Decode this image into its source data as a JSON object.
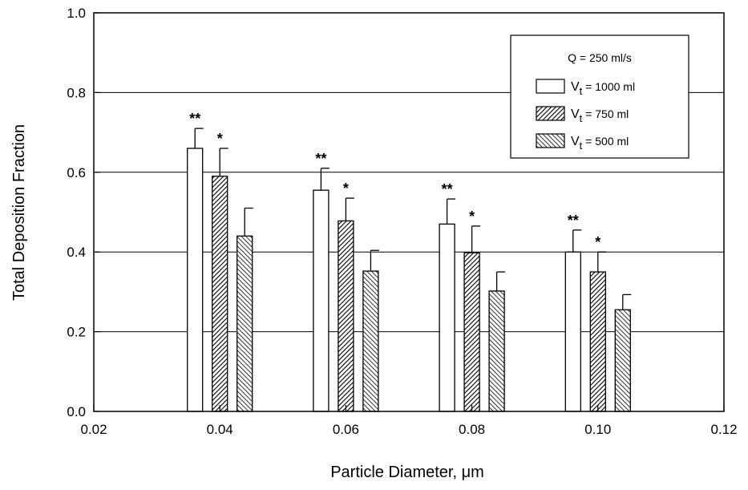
{
  "chart_data": {
    "type": "bar",
    "title": "",
    "xlabel": "Particle Diameter, μm",
    "ylabel": "Total Deposition Fraction",
    "xlim": [
      0.02,
      0.12
    ],
    "ylim": [
      0.0,
      1.0
    ],
    "x_ticks": [
      "0.02",
      "0.04",
      "0.06",
      "0.08",
      "0.10",
      "0.12"
    ],
    "y_ticks": [
      "0.0",
      "0.2",
      "0.4",
      "0.6",
      "0.8",
      "1.0"
    ],
    "grid": "horizontal",
    "legend_position": "top-right",
    "legend_title": "Q = 250 ml/s",
    "categories": [
      0.04,
      0.06,
      0.08,
      0.1
    ],
    "series": [
      {
        "name": "Vt = 1000 ml",
        "legend_main": "V",
        "legend_sub": "t",
        "legend_rest": " = 1000 ml",
        "pattern": "white",
        "values": [
          0.66,
          0.555,
          0.47,
          0.4
        ],
        "errors": [
          0.05,
          0.055,
          0.063,
          0.055
        ],
        "labels": [
          "**",
          "**",
          "**",
          "**"
        ]
      },
      {
        "name": "Vt = 750 ml",
        "legend_main": "V",
        "legend_sub": "t",
        "legend_rest": " = 750 ml",
        "pattern": "dense-hatch",
        "values": [
          0.59,
          0.478,
          0.398,
          0.35
        ],
        "errors": [
          0.07,
          0.057,
          0.067,
          0.05
        ],
        "labels": [
          "*",
          "*",
          "*",
          "*"
        ]
      },
      {
        "name": "Vt = 500 ml",
        "legend_main": "V",
        "legend_sub": "t",
        "legend_rest": " = 500 ml",
        "pattern": "sparse-hatch",
        "values": [
          0.44,
          0.352,
          0.302,
          0.255
        ],
        "errors": [
          0.07,
          0.052,
          0.048,
          0.038
        ],
        "labels": [
          "",
          "",
          "",
          ""
        ]
      }
    ]
  }
}
